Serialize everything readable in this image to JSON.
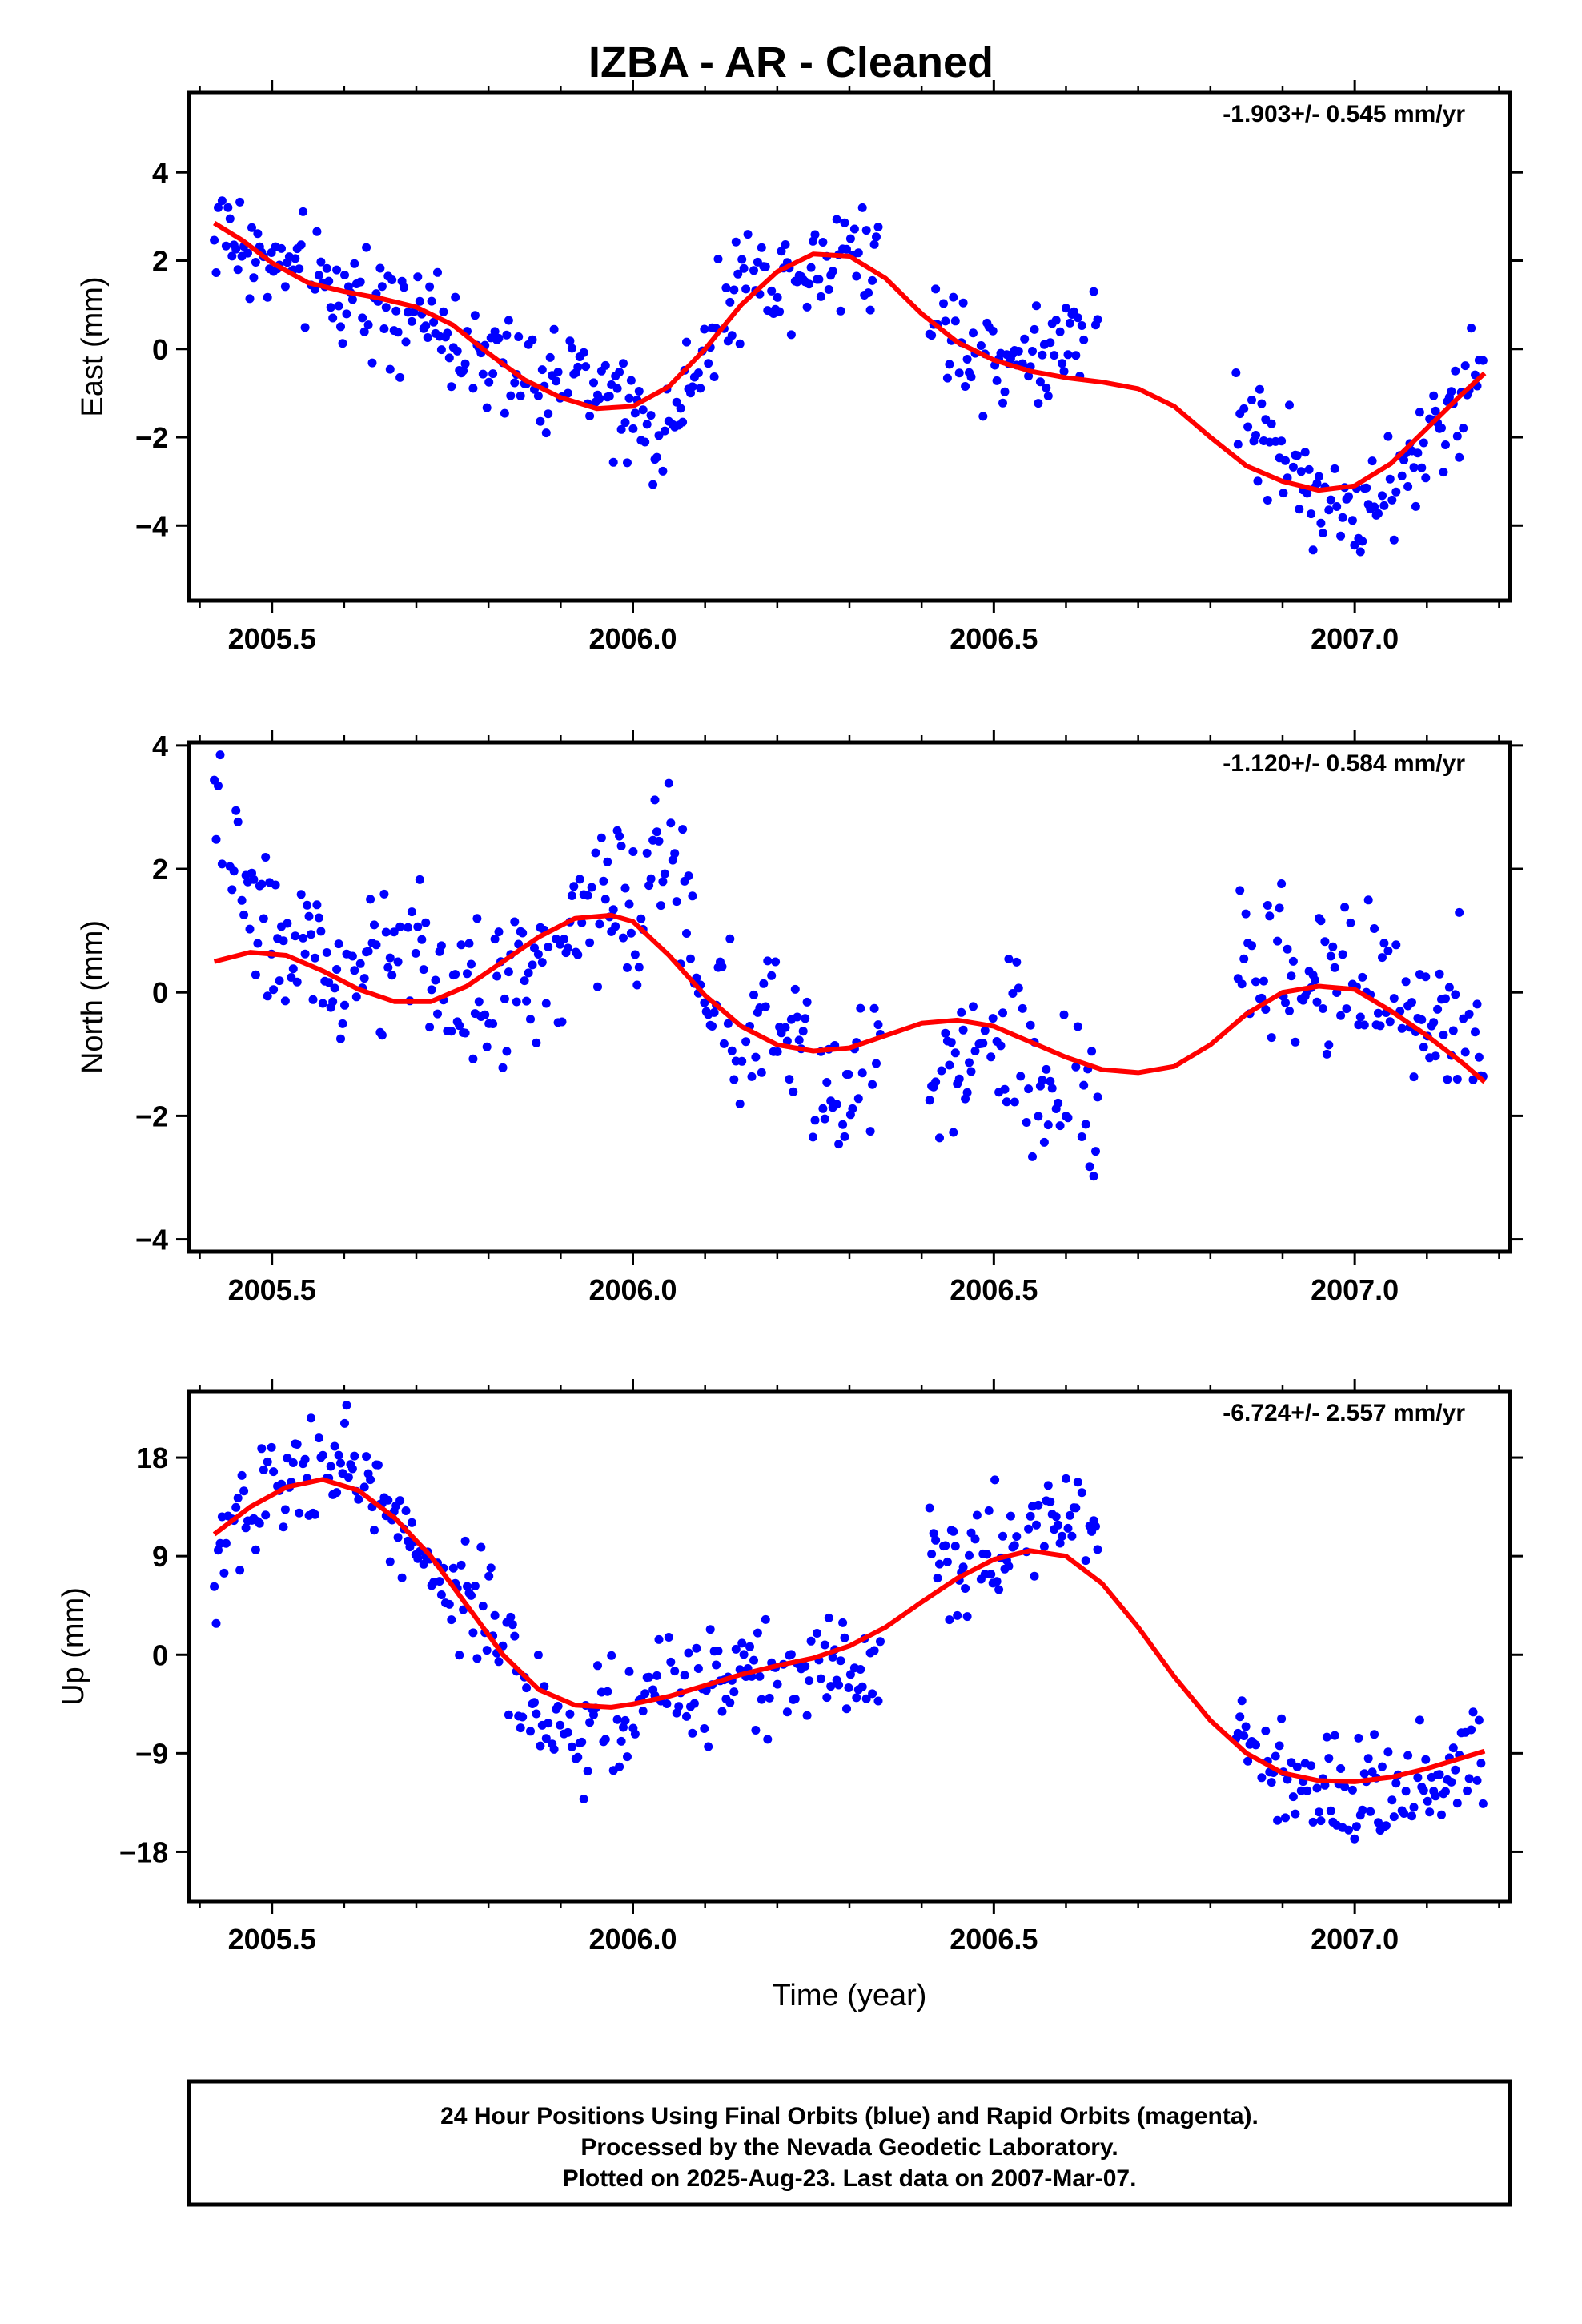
{
  "title": "IZBA  - AR - Cleaned",
  "footer": {
    "line1": "24 Hour Positions Using Final Orbits (blue) and Rapid Orbits (magenta).",
    "line2": "Processed by the Nevada Geodetic Laboratory.",
    "line3": "Plotted on 2025-Aug-23. Last data on 2007-Mar-07."
  },
  "colors": {
    "points": "#0000ff",
    "fit": "#ff0000",
    "frame": "#000000"
  },
  "chart_data": [
    {
      "type": "scatter",
      "id": "east",
      "ylabel": "East (mm)",
      "xlabel": "",
      "rate": "-1.903+/- 0.545 mm/yr",
      "xlim": [
        2005.385,
        2007.215
      ],
      "ylim": [
        -5.7,
        5.8
      ],
      "xticks": [
        2005.5,
        2006.0,
        2006.5,
        2007.0
      ],
      "xticklabels": [
        "2005.5",
        "2006.0",
        "2006.5",
        "2007.0"
      ],
      "yticks": [
        4,
        2,
        0,
        -2,
        -4
      ],
      "yticklabels": [
        "4",
        "2",
        "0",
        "−2",
        "−4"
      ],
      "data_start": 2005.42,
      "data_end": 2007.18,
      "gaps": [
        [
          2006.345,
          2006.41
        ],
        [
          2006.645,
          2006.835
        ]
      ],
      "fit": {
        "x": [
          2005.42,
          2005.46,
          2005.5,
          2005.55,
          2005.6,
          2005.65,
          2005.7,
          2005.75,
          2005.8,
          2005.85,
          2005.9,
          2005.95,
          2006.0,
          2006.05,
          2006.1,
          2006.15,
          2006.2,
          2006.25,
          2006.3,
          2006.35,
          2006.4,
          2006.45,
          2006.5,
          2006.55,
          2006.6,
          2006.65,
          2006.7,
          2006.75,
          2006.8,
          2006.85,
          2006.9,
          2006.95,
          2007.0,
          2007.05,
          2007.1,
          2007.15,
          2007.18
        ],
        "y": [
          2.85,
          2.45,
          1.95,
          1.5,
          1.3,
          1.15,
          0.95,
          0.55,
          -0.1,
          -0.7,
          -1.1,
          -1.35,
          -1.3,
          -0.85,
          0.0,
          1.0,
          1.75,
          2.15,
          2.1,
          1.6,
          0.8,
          0.15,
          -0.25,
          -0.5,
          -0.65,
          -0.75,
          -0.9,
          -1.3,
          -2.0,
          -2.65,
          -3.0,
          -3.2,
          -3.1,
          -2.6,
          -1.8,
          -1.0,
          -0.55
        ]
      },
      "anchors": {
        "x": [
          2005.42,
          2005.45,
          2005.5,
          2005.55,
          2005.6,
          2005.65,
          2005.7,
          2005.75,
          2005.8,
          2005.85,
          2005.9,
          2005.95,
          2006.0,
          2006.03,
          2006.06,
          2006.1,
          2006.15,
          2006.2,
          2006.25,
          2006.3,
          2006.34,
          2006.41,
          2006.45,
          2006.5,
          2006.55,
          2006.6,
          2006.64,
          2006.84,
          2006.9,
          2006.95,
          2007.0,
          2007.05,
          2007.1,
          2007.15,
          2007.18
        ],
        "y": [
          2.7,
          2.4,
          1.9,
          1.5,
          1.2,
          1.3,
          0.8,
          0.3,
          -0.3,
          -0.8,
          -0.6,
          -0.8,
          -1.5,
          -2.3,
          -1.4,
          0.2,
          1.5,
          1.6,
          2.0,
          2.4,
          2.0,
          0.8,
          0.4,
          -0.4,
          -0.2,
          0.1,
          0.8,
          -1.5,
          -2.4,
          -3.2,
          -3.9,
          -3.4,
          -2.1,
          -1.0,
          0.6
        ]
      },
      "spread": 0.8
    },
    {
      "type": "scatter",
      "id": "north",
      "ylabel": "North (mm)",
      "xlabel": "",
      "rate": "-1.120+/- 0.584 mm/yr",
      "xlim": [
        2005.385,
        2007.215
      ],
      "ylim": [
        -4.2,
        4.05
      ],
      "xticks": [
        2005.5,
        2006.0,
        2006.5,
        2007.0
      ],
      "xticklabels": [
        "2005.5",
        "2006.0",
        "2006.5",
        "2007.0"
      ],
      "yticks": [
        4,
        2,
        0,
        -2,
        -4
      ],
      "yticklabels": [
        "4",
        "2",
        "0",
        "−2",
        "−4"
      ],
      "data_start": 2005.42,
      "data_end": 2007.18,
      "gaps": [
        [
          2006.345,
          2006.41
        ],
        [
          2006.645,
          2006.835
        ]
      ],
      "fit": {
        "x": [
          2005.42,
          2005.47,
          2005.52,
          2005.57,
          2005.62,
          2005.67,
          2005.72,
          2005.77,
          2005.82,
          2005.87,
          2005.92,
          2005.97,
          2006.0,
          2006.05,
          2006.1,
          2006.15,
          2006.2,
          2006.25,
          2006.3,
          2006.35,
          2006.4,
          2006.45,
          2006.5,
          2006.55,
          2006.6,
          2006.65,
          2006.7,
          2006.75,
          2006.8,
          2006.85,
          2006.9,
          2006.95,
          2007.0,
          2007.05,
          2007.1,
          2007.15,
          2007.18
        ],
        "y": [
          0.5,
          0.65,
          0.6,
          0.35,
          0.05,
          -0.15,
          -0.15,
          0.1,
          0.5,
          0.9,
          1.2,
          1.25,
          1.15,
          0.6,
          -0.05,
          -0.55,
          -0.85,
          -0.95,
          -0.9,
          -0.7,
          -0.5,
          -0.45,
          -0.55,
          -0.8,
          -1.05,
          -1.25,
          -1.3,
          -1.2,
          -0.85,
          -0.35,
          0.0,
          0.1,
          0.05,
          -0.3,
          -0.7,
          -1.15,
          -1.45
        ]
      },
      "anchors": {
        "x": [
          2005.42,
          2005.45,
          2005.5,
          2005.55,
          2005.6,
          2005.65,
          2005.7,
          2005.75,
          2005.8,
          2005.85,
          2005.9,
          2005.95,
          2006.0,
          2006.03,
          2006.06,
          2006.1,
          2006.15,
          2006.2,
          2006.25,
          2006.3,
          2006.34,
          2006.41,
          2006.45,
          2006.5,
          2006.55,
          2006.6,
          2006.64,
          2006.84,
          2006.9,
          2006.95,
          2007.0,
          2007.05,
          2007.1,
          2007.15,
          2007.18
        ],
        "y": [
          2.9,
          2.0,
          1.1,
          0.4,
          0.1,
          0.6,
          0.6,
          0.1,
          -0.4,
          0.8,
          0.4,
          1.6,
          1.2,
          2.4,
          1.9,
          0.0,
          -0.7,
          -0.5,
          -1.3,
          -1.8,
          -0.9,
          -1.6,
          -1.0,
          -0.8,
          -1.2,
          -1.4,
          -2.0,
          0.2,
          0.5,
          0.3,
          0.2,
          0.0,
          -0.7,
          0.2,
          -0.9
        ]
      },
      "spread": 0.85
    },
    {
      "type": "scatter",
      "id": "up",
      "ylabel": "Up (mm)",
      "xlabel": "Time (year)",
      "rate": "-6.724+/- 2.557 mm/yr",
      "xlim": [
        2005.385,
        2007.215
      ],
      "ylim": [
        -22.5,
        24.0
      ],
      "xticks": [
        2005.5,
        2006.0,
        2006.5,
        2007.0
      ],
      "xticklabels": [
        "2005.5",
        "2006.0",
        "2006.5",
        "2007.0"
      ],
      "yticks": [
        18,
        9,
        0,
        -9,
        -18
      ],
      "yticklabels": [
        "18",
        "9",
        "0",
        "−9",
        "−18"
      ],
      "data_start": 2005.42,
      "data_end": 2007.18,
      "gaps": [
        [
          2006.345,
          2006.41
        ],
        [
          2006.645,
          2006.835
        ]
      ],
      "fit": {
        "x": [
          2005.42,
          2005.47,
          2005.52,
          2005.57,
          2005.62,
          2005.67,
          2005.72,
          2005.77,
          2005.82,
          2005.87,
          2005.92,
          2005.97,
          2006.0,
          2006.05,
          2006.1,
          2006.15,
          2006.2,
          2006.25,
          2006.3,
          2006.35,
          2006.4,
          2006.45,
          2006.5,
          2006.55,
          2006.6,
          2006.65,
          2006.7,
          2006.75,
          2006.8,
          2006.85,
          2006.9,
          2006.95,
          2007.0,
          2007.05,
          2007.1,
          2007.15,
          2007.18
        ],
        "y": [
          11.0,
          13.5,
          15.3,
          16.0,
          15.0,
          12.5,
          9.0,
          4.5,
          0.0,
          -3.2,
          -4.6,
          -4.8,
          -4.5,
          -3.8,
          -2.8,
          -1.8,
          -1.0,
          -0.3,
          0.8,
          2.5,
          4.8,
          7.0,
          8.7,
          9.5,
          9.0,
          6.5,
          2.5,
          -2.0,
          -6.0,
          -9.0,
          -10.8,
          -11.5,
          -11.6,
          -11.2,
          -10.4,
          -9.4,
          -8.8
        ]
      },
      "anchors": {
        "x": [
          2005.42,
          2005.45,
          2005.5,
          2005.55,
          2005.6,
          2005.65,
          2005.7,
          2005.75,
          2005.8,
          2005.85,
          2005.9,
          2005.95,
          2006.0,
          2006.03,
          2006.06,
          2006.1,
          2006.15,
          2006.2,
          2006.25,
          2006.3,
          2006.34,
          2006.41,
          2006.45,
          2006.5,
          2006.55,
          2006.6,
          2006.64,
          2006.84,
          2006.9,
          2006.95,
          2007.0,
          2007.05,
          2007.1,
          2007.15,
          2007.18
        ],
        "y": [
          6.0,
          12.0,
          16.0,
          17.5,
          17.0,
          14.0,
          10.5,
          6.5,
          3.0,
          -4.0,
          -8.5,
          -5.5,
          -5.0,
          -2.5,
          -2.0,
          -3.5,
          -1.0,
          -2.0,
          0.0,
          -1.0,
          0.0,
          9.0,
          8.0,
          10.0,
          11.0,
          12.0,
          11.0,
          -6.0,
          -10.0,
          -13.0,
          -12.0,
          -13.0,
          -11.0,
          -11.0,
          -10.0
        ]
      },
      "spread": 3.3
    }
  ]
}
